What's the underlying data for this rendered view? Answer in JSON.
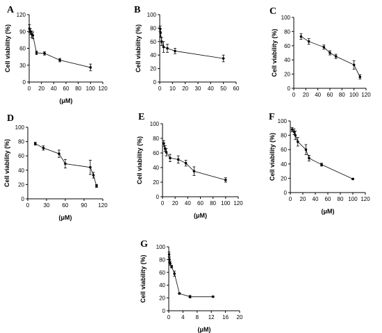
{
  "figure": {
    "panels_order": [
      "A",
      "B",
      "C",
      "D",
      "E",
      "F",
      "G"
    ]
  },
  "chart_data": [
    {
      "panel": "A",
      "type": "line",
      "title": "",
      "xlabel": "(μM)",
      "ylabel": "Cell viability (%)",
      "xlim": [
        0,
        120
      ],
      "ylim": [
        0,
        120
      ],
      "xticks": [
        0,
        20,
        40,
        60,
        80,
        100,
        120
      ],
      "yticks": [
        0,
        30,
        60,
        90,
        120
      ],
      "points": [
        {
          "x": 0.5,
          "y": 95,
          "err": 7
        },
        {
          "x": 2,
          "y": 90,
          "err": 5
        },
        {
          "x": 4,
          "y": 85,
          "err": 6
        },
        {
          "x": 6,
          "y": 83,
          "err": 6
        },
        {
          "x": 12,
          "y": 52,
          "err": 3
        },
        {
          "x": 25,
          "y": 51,
          "err": 3
        },
        {
          "x": 50,
          "y": 39,
          "err": 3
        },
        {
          "x": 100,
          "y": 26,
          "err": 6
        }
      ]
    },
    {
      "panel": "B",
      "type": "line",
      "title": "",
      "xlabel": "",
      "ylabel": "Cell viability (%)",
      "xlim": [
        0,
        60
      ],
      "ylim": [
        0,
        100
      ],
      "xticks": [
        0,
        10,
        20,
        30,
        40,
        50,
        60
      ],
      "yticks": [
        0,
        20,
        40,
        60,
        80,
        100
      ],
      "points": [
        {
          "x": 0.3,
          "y": 79,
          "err": 4
        },
        {
          "x": 0.6,
          "y": 73,
          "err": 6
        },
        {
          "x": 1.5,
          "y": 60,
          "err": 6
        },
        {
          "x": 3,
          "y": 52,
          "err": 8
        },
        {
          "x": 6,
          "y": 50,
          "err": 6
        },
        {
          "x": 12,
          "y": 46,
          "err": 4
        },
        {
          "x": 50,
          "y": 35,
          "err": 5
        }
      ]
    },
    {
      "panel": "C",
      "type": "line",
      "title": "",
      "xlabel": "",
      "ylabel": "Cell viability (%)",
      "xlim": [
        0,
        120
      ],
      "ylim": [
        0,
        100
      ],
      "xticks": [
        0,
        20,
        40,
        60,
        80,
        100,
        120
      ],
      "yticks": [
        0,
        20,
        40,
        60,
        80,
        100
      ],
      "points": [
        {
          "x": 12,
          "y": 73,
          "err": 4
        },
        {
          "x": 25,
          "y": 66,
          "err": 4
        },
        {
          "x": 50,
          "y": 58,
          "err": 3
        },
        {
          "x": 60,
          "y": 50,
          "err": 3
        },
        {
          "x": 70,
          "y": 45,
          "err": 3
        },
        {
          "x": 100,
          "y": 33,
          "err": 6
        },
        {
          "x": 110,
          "y": 16,
          "err": 3
        }
      ]
    },
    {
      "panel": "D",
      "type": "line",
      "title": "",
      "xlabel": "(μM)",
      "ylabel": "Cell viability (%)",
      "xlim": [
        0,
        120
      ],
      "ylim": [
        0,
        100
      ],
      "xticks": [
        0,
        30,
        60,
        90,
        120
      ],
      "yticks": [
        0,
        20,
        40,
        60,
        80,
        100
      ],
      "points": [
        {
          "x": 12,
          "y": 77,
          "err": 2
        },
        {
          "x": 25,
          "y": 71,
          "err": 3
        },
        {
          "x": 50,
          "y": 63,
          "err": 5
        },
        {
          "x": 60,
          "y": 49,
          "err": 6
        },
        {
          "x": 100,
          "y": 44,
          "err": 10
        },
        {
          "x": 105,
          "y": 33,
          "err": 4
        },
        {
          "x": 110,
          "y": 18,
          "err": 2
        }
      ]
    },
    {
      "panel": "E",
      "type": "line",
      "title": "",
      "xlabel": "(μM)",
      "ylabel": "Cell viability (%)",
      "xlim": [
        0,
        120
      ],
      "ylim": [
        0,
        100
      ],
      "xticks": [
        0,
        20,
        40,
        60,
        80,
        100,
        120
      ],
      "yticks": [
        0,
        20,
        40,
        60,
        80,
        100
      ],
      "points": [
        {
          "x": 2,
          "y": 73,
          "err": 4
        },
        {
          "x": 4,
          "y": 66,
          "err": 4
        },
        {
          "x": 6,
          "y": 61,
          "err": 5
        },
        {
          "x": 12,
          "y": 53,
          "err": 5
        },
        {
          "x": 25,
          "y": 51,
          "err": 5
        },
        {
          "x": 37,
          "y": 46,
          "err": 4
        },
        {
          "x": 50,
          "y": 35,
          "err": 6
        },
        {
          "x": 100,
          "y": 23,
          "err": 3
        }
      ]
    },
    {
      "panel": "F",
      "type": "line",
      "title": "",
      "xlabel": "(μM)",
      "ylabel": "Cell viability (%)",
      "xlim": [
        0,
        120
      ],
      "ylim": [
        0,
        100
      ],
      "xticks": [
        0,
        20,
        40,
        60,
        80,
        100,
        120
      ],
      "yticks": [
        0,
        20,
        40,
        60,
        80,
        100
      ],
      "points": [
        {
          "x": 3,
          "y": 88,
          "err": 3
        },
        {
          "x": 6,
          "y": 85,
          "err": 4
        },
        {
          "x": 8,
          "y": 80,
          "err": 6
        },
        {
          "x": 12,
          "y": 71,
          "err": 6
        },
        {
          "x": 25,
          "y": 60,
          "err": 7
        },
        {
          "x": 30,
          "y": 48,
          "err": 4
        },
        {
          "x": 50,
          "y": 39,
          "err": 2
        },
        {
          "x": 100,
          "y": 19,
          "err": 1
        }
      ]
    },
    {
      "panel": "G",
      "type": "line",
      "title": "",
      "xlabel": "(μM)",
      "ylabel": "Cell viability (%)",
      "xlim": [
        0,
        20
      ],
      "ylim": [
        0,
        100
      ],
      "xticks": [
        0,
        4,
        8,
        12,
        16,
        20
      ],
      "yticks": [
        0,
        20,
        40,
        60,
        80,
        100
      ],
      "points": [
        {
          "x": 0.1,
          "y": 88,
          "err": 4
        },
        {
          "x": 0.2,
          "y": 80,
          "err": 4
        },
        {
          "x": 0.4,
          "y": 74,
          "err": 3
        },
        {
          "x": 0.8,
          "y": 69,
          "err": 2
        },
        {
          "x": 1.6,
          "y": 58,
          "err": 4
        },
        {
          "x": 3,
          "y": 27,
          "err": 1
        },
        {
          "x": 6,
          "y": 22,
          "err": 2
        },
        {
          "x": 12.5,
          "y": 22,
          "err": 1
        }
      ]
    }
  ]
}
